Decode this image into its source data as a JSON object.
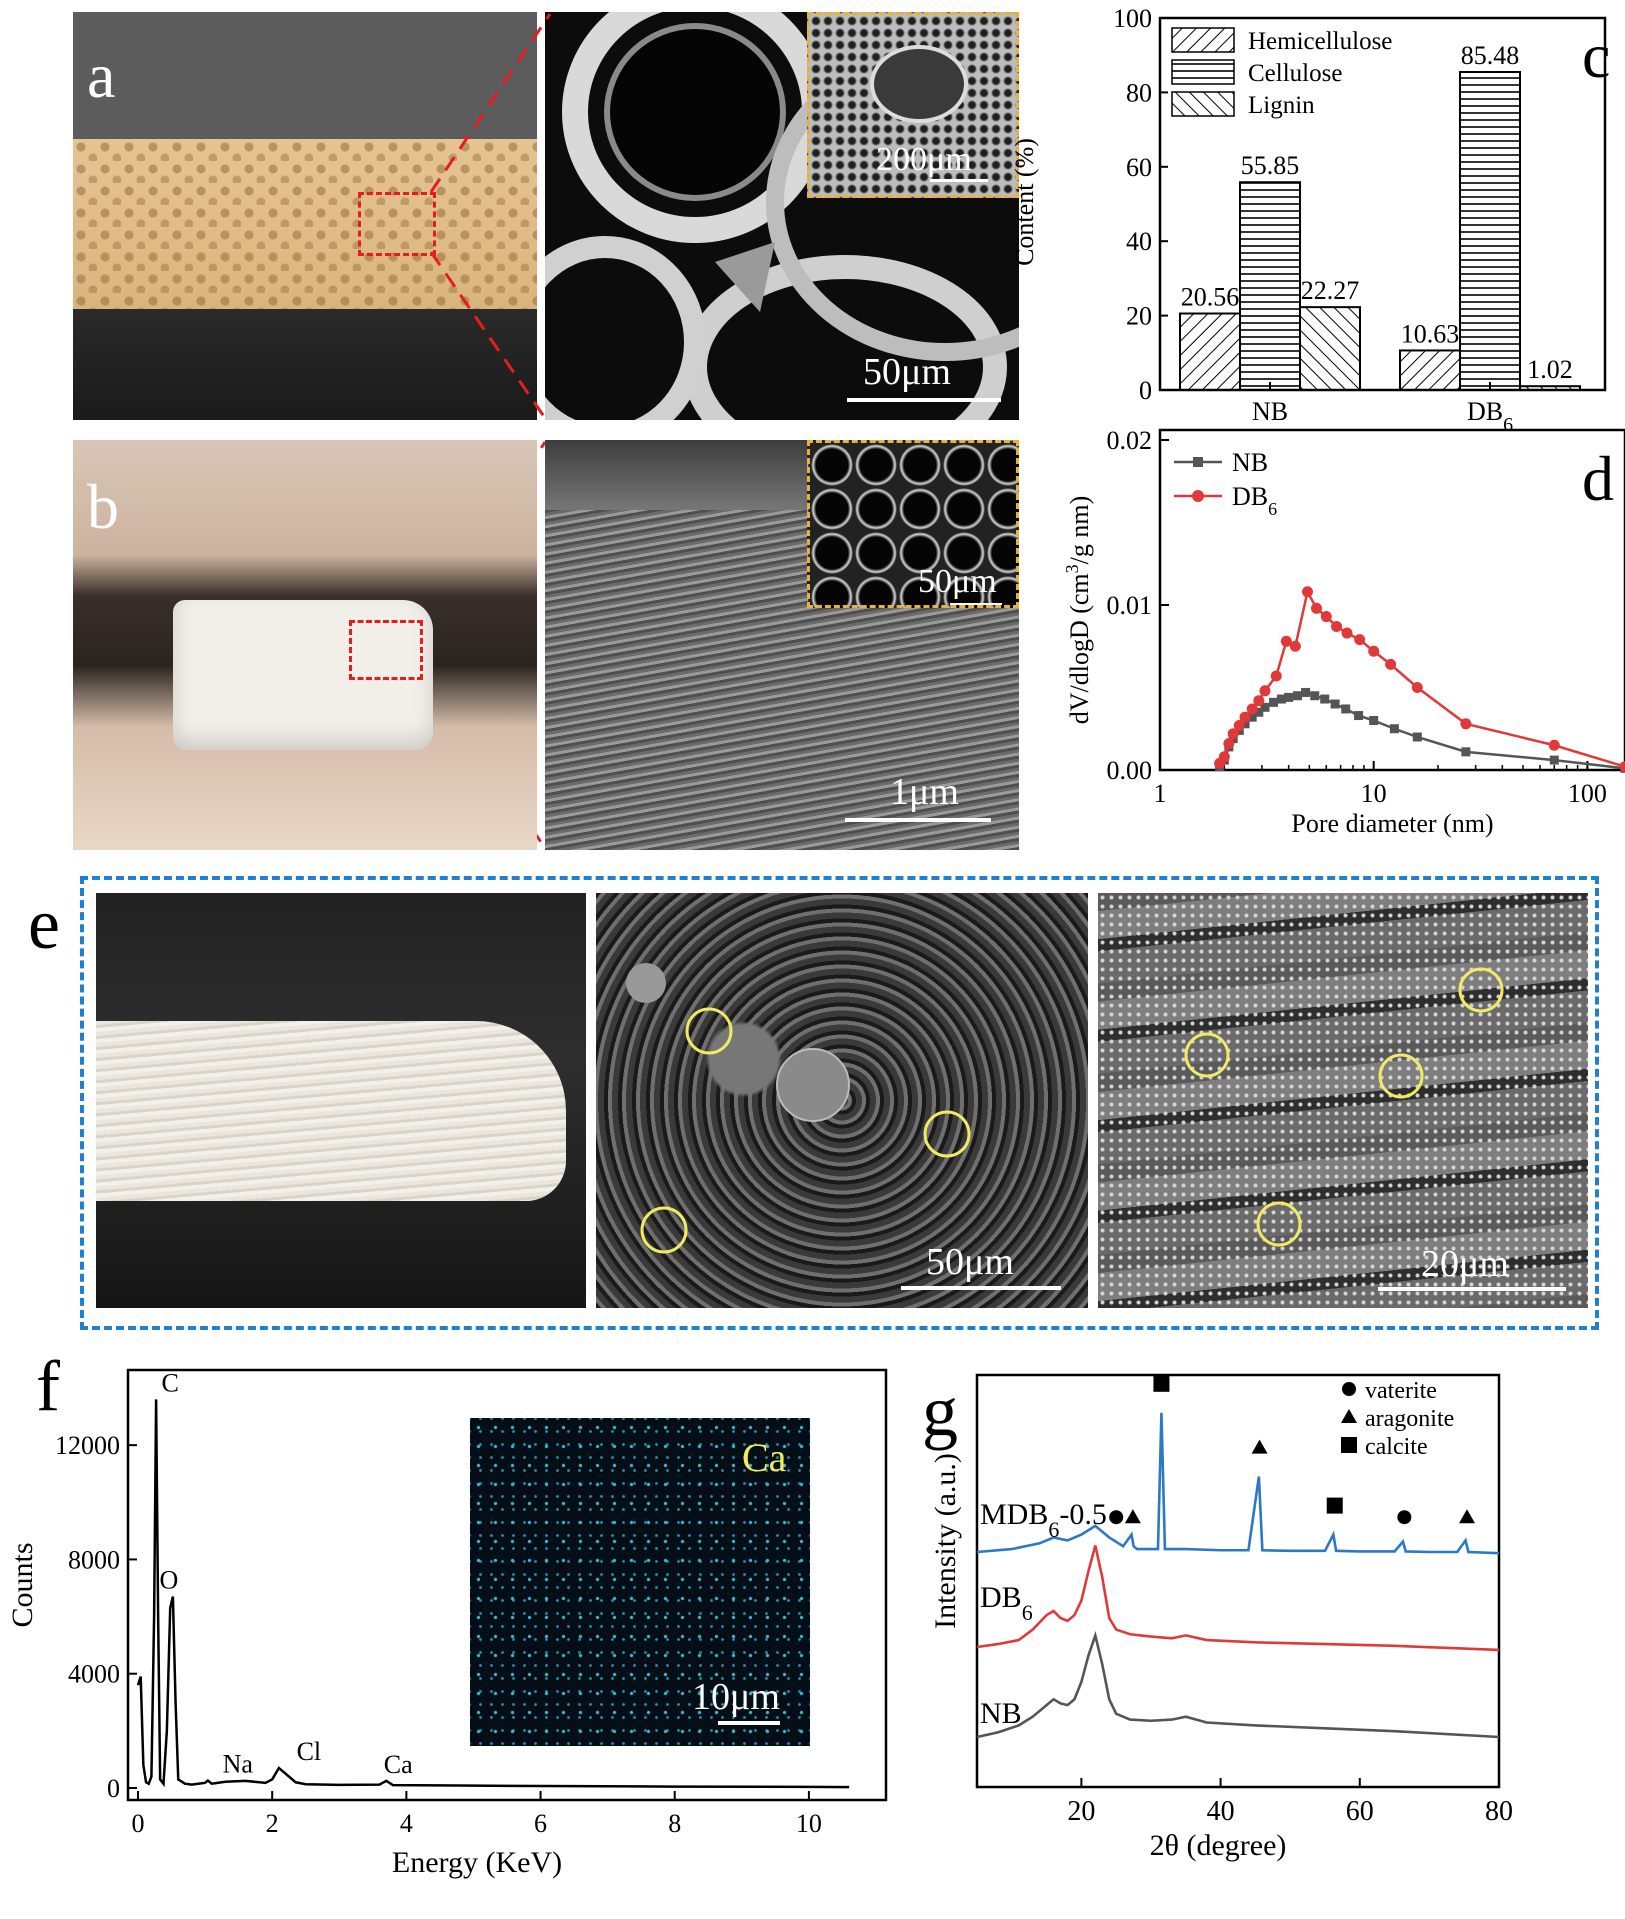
{
  "panels": {
    "a": {
      "letter": "a",
      "sem_scale": "50μm",
      "inset_scale": "200μm"
    },
    "b": {
      "letter": "b",
      "sem_scale": "1μm",
      "inset_scale": "50μm"
    },
    "e": {
      "letter": "e",
      "sem1_scale": "50μm",
      "sem2_scale": "20μm"
    },
    "f": {
      "letter": "f",
      "map_label": "Ca",
      "map_scale": "10μm"
    },
    "c": {
      "letter": "c"
    },
    "d": {
      "letter": "d"
    },
    "g": {
      "letter": "g"
    }
  },
  "chart_data": [
    {
      "id": "c",
      "type": "bar",
      "categories": [
        "NB",
        "DB6"
      ],
      "category_labels": [
        "NB",
        "DB",
        "6"
      ],
      "series": [
        {
          "name": "Hemicellulose",
          "values": [
            20.56,
            10.63
          ],
          "value_labels": [
            "20.56",
            "10.63"
          ]
        },
        {
          "name": "Cellulose",
          "values": [
            55.85,
            85.48
          ],
          "value_labels": [
            "55.85",
            "85.48"
          ]
        },
        {
          "name": "Lignin",
          "values": [
            22.27,
            1.02
          ],
          "value_labels": [
            "22.27",
            "1.02"
          ]
        }
      ],
      "ylabel": "Content (%)",
      "ylim": [
        0,
        100
      ],
      "yticks": [
        "0",
        "20",
        "40",
        "60",
        "80",
        "100"
      ],
      "legend": "top-left",
      "patterns": [
        "diagonal-forward",
        "horizontal",
        "diagonal-back"
      ]
    },
    {
      "id": "d",
      "type": "line",
      "xscale": "log",
      "xlim": [
        1,
        150
      ],
      "ylim": [
        0,
        0.02
      ],
      "xticks": [
        "1",
        "10",
        "100"
      ],
      "yticks": [
        "0.00",
        "0.01",
        "0.02"
      ],
      "xlabel": "Pore diameter (nm)",
      "ylabel": "dV/dlogD (cm3/g nm)",
      "ylabel_parts": [
        "dV/dlogD (cm",
        "3",
        "/g nm)"
      ],
      "legend": "top-left",
      "series": [
        {
          "name": "NB",
          "legend_label": [
            "NB",
            ""
          ],
          "color": "#555555",
          "marker": "square",
          "x": [
            1.9,
            2.0,
            2.1,
            2.2,
            2.35,
            2.5,
            2.7,
            2.9,
            3.1,
            3.4,
            3.7,
            4.0,
            4.4,
            4.8,
            5.3,
            5.9,
            6.6,
            7.4,
            8.5,
            10.0,
            12.5,
            16.0,
            27.0,
            70.0,
            150.0
          ],
          "y": [
            0.0002,
            0.0006,
            0.0014,
            0.0019,
            0.0024,
            0.0028,
            0.0032,
            0.0035,
            0.0038,
            0.0041,
            0.0043,
            0.0044,
            0.0045,
            0.0047,
            0.0045,
            0.0043,
            0.004,
            0.0037,
            0.0033,
            0.003,
            0.0025,
            0.002,
            0.0011,
            0.0006,
            0.0001
          ]
        },
        {
          "name": "DB6",
          "legend_label": [
            "DB",
            "6"
          ],
          "color": "#e0393a",
          "marker": "circle",
          "x": [
            1.9,
            2.0,
            2.1,
            2.2,
            2.35,
            2.5,
            2.7,
            2.9,
            3.1,
            3.5,
            3.9,
            4.3,
            4.9,
            5.4,
            6.0,
            6.7,
            7.5,
            8.6,
            10.0,
            12.0,
            16.0,
            27.0,
            70.0,
            150.0
          ],
          "y": [
            0.0004,
            0.0008,
            0.0016,
            0.0022,
            0.0027,
            0.0032,
            0.0037,
            0.0042,
            0.0048,
            0.0057,
            0.0078,
            0.0075,
            0.0108,
            0.0098,
            0.0093,
            0.0087,
            0.0083,
            0.0079,
            0.0072,
            0.0064,
            0.005,
            0.0028,
            0.0015,
            0.0002
          ]
        }
      ]
    },
    {
      "id": "f",
      "type": "line",
      "xlim": [
        0,
        11
      ],
      "ylim": [
        0,
        14000
      ],
      "xticks": [
        "0",
        "2",
        "4",
        "6",
        "8",
        "10"
      ],
      "yticks": [
        "0",
        "4000",
        "8000",
        "12000"
      ],
      "xlabel": "Energy (KeV)",
      "ylabel": "Counts",
      "series": [
        {
          "name": "",
          "color": "#000000",
          "x": [
            0.0,
            0.04,
            0.08,
            0.12,
            0.16,
            0.2,
            0.24,
            0.27,
            0.3,
            0.33,
            0.38,
            0.43,
            0.48,
            0.52,
            0.56,
            0.6,
            0.7,
            0.8,
            1.0,
            1.04,
            1.1,
            1.3,
            1.6,
            1.9,
            2.0,
            2.1,
            2.2,
            2.35,
            2.5,
            3.0,
            3.6,
            3.7,
            3.8,
            4.5,
            6.0,
            8.0,
            10.0,
            10.6
          ],
          "y": [
            3600,
            3900,
            800,
            200,
            150,
            400,
            6000,
            13600,
            6000,
            300,
            150,
            2000,
            6300,
            6700,
            3000,
            300,
            150,
            120,
            180,
            260,
            150,
            220,
            250,
            180,
            300,
            700,
            500,
            200,
            130,
            110,
            120,
            250,
            100,
            90,
            70,
            50,
            40,
            30
          ]
        }
      ],
      "peak_labels": [
        {
          "text": "C",
          "x": 0.3,
          "y": 13600
        },
        {
          "text": "O",
          "x": 0.52,
          "y": 6700
        },
        {
          "text": "Na",
          "x": 1.04,
          "y": 260
        },
        {
          "text": "Cl",
          "x": 2.1,
          "y": 700
        },
        {
          "text": "Ca",
          "x": 3.7,
          "y": 250
        }
      ]
    },
    {
      "id": "g",
      "type": "line",
      "xlim": [
        5,
        80
      ],
      "xticks": [
        "20",
        "40",
        "60",
        "80"
      ],
      "xlabel": "2θ (degree)",
      "ylabel": "Intensity (a.u.)",
      "grid": false,
      "legend": "top-right",
      "legend_entries": [
        {
          "symbol": "circle",
          "label": "vaterite"
        },
        {
          "symbol": "triangle",
          "label": "aragonite"
        },
        {
          "symbol": "square",
          "label": "calcite"
        }
      ],
      "series": [
        {
          "name": "MDB6-0.5",
          "label_parts": [
            "MDB",
            "6",
            "-0.5"
          ],
          "color": "#2b78c5",
          "offset": 2.6,
          "x": [
            5,
            10,
            14,
            16,
            18,
            20,
            22,
            24,
            26,
            27.2,
            27.5,
            28,
            31,
            31.5,
            32,
            35,
            40,
            44,
            45.5,
            46,
            50,
            55,
            56.2,
            56.6,
            60,
            65,
            66.2,
            66.6,
            70,
            74,
            75.2,
            75.6,
            80
          ],
          "y": [
            0.0,
            0.05,
            0.15,
            0.25,
            0.2,
            0.3,
            0.45,
            0.25,
            0.1,
            0.3,
            0.1,
            0.05,
            0.05,
            2.4,
            0.05,
            0.05,
            0.03,
            0.03,
            1.3,
            0.03,
            0.02,
            0.02,
            0.3,
            0.02,
            0.01,
            0.01,
            0.18,
            0.01,
            0.0,
            0.0,
            0.2,
            0.0,
            -0.02
          ]
        },
        {
          "name": "DB6",
          "label_parts": [
            "DB",
            "6",
            ""
          ],
          "color": "#e0393a",
          "offset": 1.2,
          "x": [
            5,
            8,
            11,
            13,
            15,
            16,
            17,
            18,
            19,
            20,
            21,
            22,
            23,
            24,
            25,
            27,
            30,
            33,
            35,
            38,
            45,
            55,
            65,
            80
          ],
          "y": [
            0.0,
            0.05,
            0.12,
            0.3,
            0.55,
            0.62,
            0.5,
            0.45,
            0.55,
            0.8,
            1.3,
            1.75,
            1.2,
            0.5,
            0.3,
            0.22,
            0.18,
            0.15,
            0.2,
            0.12,
            0.08,
            0.05,
            0.02,
            -0.05
          ]
        },
        {
          "name": "NB",
          "label_parts": [
            "NB",
            "",
            ""
          ],
          "color": "#555555",
          "offset": 0.0,
          "x": [
            5,
            8,
            11,
            13,
            15,
            16,
            17,
            18,
            19,
            20,
            21,
            22,
            23,
            24,
            25,
            27,
            30,
            33,
            35,
            38,
            45,
            55,
            65,
            80
          ],
          "y": [
            0.0,
            0.08,
            0.2,
            0.35,
            0.55,
            0.65,
            0.58,
            0.55,
            0.65,
            0.95,
            1.4,
            1.75,
            1.25,
            0.65,
            0.4,
            0.3,
            0.28,
            0.3,
            0.35,
            0.25,
            0.2,
            0.15,
            0.1,
            0.0
          ]
        }
      ]
    }
  ]
}
